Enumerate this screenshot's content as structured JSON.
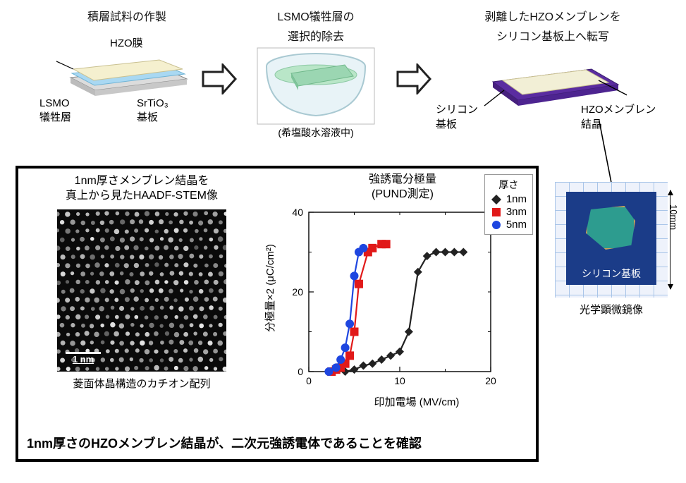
{
  "process": {
    "step1": {
      "title": "積層試料の作製",
      "hzo": "HZO膜",
      "lsmo": "LSMO\n犠牲層",
      "sto": "SrTiO₃\n基板"
    },
    "step2": {
      "title_l1": "LSMO犠牲層の",
      "title_l2": "選択的除去",
      "note": "(希塩酸水溶液中)"
    },
    "step3": {
      "title_l1": "剥離したHZOメンブレンを",
      "title_l2": "シリコン基板上へ転写",
      "si": "シリコン\n基板",
      "membrane": "HZOメンブレン\n結晶"
    }
  },
  "stem": {
    "title_l1": "1nm厚さメンブレン結晶を",
    "title_l2": "真上から見たHAADF-STEM像",
    "scalebar": "1 nm",
    "caption": "菱面体晶構造のカチオン配列"
  },
  "chart": {
    "title_l1": "強誘電分極量",
    "title_l2": "(PUND測定)",
    "xlabel": "印加電場 (MV/cm)",
    "ylabel": "分極量×2 (μC/cm²)",
    "xlim": [
      0,
      20
    ],
    "ylim": [
      0,
      40
    ],
    "xticks": [
      0,
      10,
      20
    ],
    "yticks": [
      0,
      20,
      40
    ],
    "legend_title": "厚さ",
    "series": [
      {
        "label": "1nm",
        "color": "#222222",
        "marker": "diamond",
        "x": [
          4,
          5,
          6,
          7,
          8,
          9,
          10,
          11,
          12,
          13,
          14,
          15,
          16,
          17
        ],
        "y": [
          0,
          0.5,
          1.5,
          2,
          3,
          4,
          5,
          10,
          25,
          29,
          30,
          30,
          30,
          30
        ]
      },
      {
        "label": "3nm",
        "color": "#e11919",
        "marker": "square",
        "x": [
          2.5,
          3,
          3.5,
          4,
          4.5,
          5,
          5.5,
          6.5,
          7,
          8,
          8.5
        ],
        "y": [
          0,
          0.5,
          1,
          2,
          4,
          10,
          22,
          30,
          31,
          32,
          32
        ]
      },
      {
        "label": "5nm",
        "color": "#1e46e0",
        "marker": "circle",
        "x": [
          2.2,
          3,
          3.5,
          4,
          4.5,
          5,
          5.5,
          6
        ],
        "y": [
          0,
          1,
          3,
          6,
          12,
          24,
          30,
          31
        ]
      }
    ]
  },
  "photo": {
    "silicon_label": "シリコン基板",
    "dim": "10mm",
    "caption": "光学顕微鏡像"
  },
  "conclusion": "1nm厚さのHZOメンブレン結晶が、二次元強誘電体であることを確認",
  "colors": {
    "hzo": "#f5f0cf",
    "lsmo": "#a9d8f2",
    "sto": "#dcdcdc",
    "beaker_water": "#b9e6c8",
    "beaker_glass": "#e8f3f7",
    "si_substrate": "#5a2ca0",
    "membrane_top": "#f2efd6"
  }
}
